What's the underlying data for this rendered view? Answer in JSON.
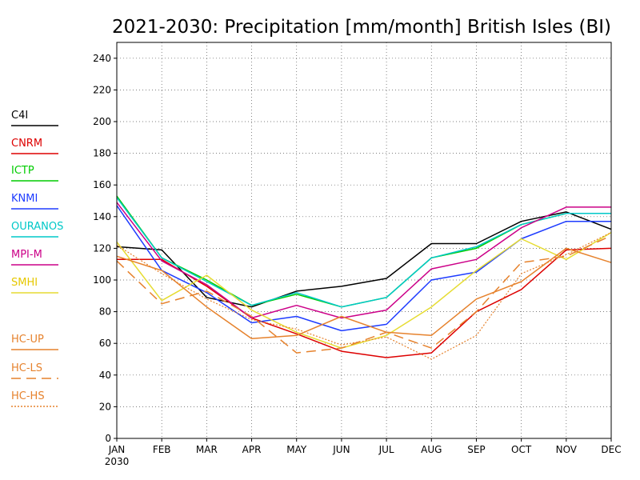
{
  "chart_data": {
    "type": "line",
    "title": "2021-2030: Precipitation [mm/month] British Isles (BI)",
    "xlabel": "",
    "ylabel": "",
    "categories": [
      "JAN",
      "FEB",
      "MAR",
      "APR",
      "MAY",
      "JUN",
      "JUL",
      "AUG",
      "SEP",
      "OCT",
      "NOV",
      "DEC"
    ],
    "x_sublabel": "2030",
    "ylim": [
      0,
      250
    ],
    "yticks": [
      0,
      20,
      40,
      60,
      80,
      100,
      120,
      140,
      160,
      180,
      200,
      220,
      240
    ],
    "grid": true,
    "legend_position": "left",
    "series": [
      {
        "name": "C4I",
        "color": "#000000",
        "dash": "solid",
        "values": [
          121,
          119,
          89,
          83,
          93,
          96,
          101,
          123,
          123,
          137,
          143,
          132
        ]
      },
      {
        "name": "CNRM",
        "color": "#dd0000",
        "dash": "solid",
        "values": [
          113,
          113,
          96,
          76,
          66,
          55,
          51,
          54,
          80,
          94,
          119,
          120
        ]
      },
      {
        "name": "ICTP",
        "color": "#00cc00",
        "dash": "solid",
        "values": [
          153,
          114,
          100,
          84,
          91,
          83,
          89,
          114,
          120,
          135,
          142,
          142
        ]
      },
      {
        "name": "KNMI",
        "color": "#1e3cff",
        "dash": "solid",
        "values": [
          147,
          106,
          92,
          73,
          77,
          68,
          72,
          100,
          105,
          126,
          137,
          137
        ]
      },
      {
        "name": "OURANOS",
        "color": "#00c8c8",
        "dash": "solid",
        "values": [
          152,
          114,
          99,
          84,
          92,
          83,
          89,
          114,
          121,
          135,
          142,
          142
        ]
      },
      {
        "name": "MPI-M",
        "color": "#cc0088",
        "dash": "solid",
        "values": [
          149,
          112,
          97,
          76,
          84,
          76,
          81,
          107,
          113,
          133,
          146,
          146
        ]
      },
      {
        "name": "SMHI",
        "color": "#e6dc32",
        "dash": "solid",
        "values": [
          124,
          87,
          103,
          81,
          67,
          57,
          65,
          83,
          106,
          126,
          113,
          130
        ]
      },
      {
        "name": "HC-UP",
        "color": "#e6822d",
        "dash": "solid",
        "values": [
          115,
          106,
          83,
          63,
          65,
          77,
          67,
          65,
          88,
          99,
          120,
          111
        ]
      },
      {
        "name": "HC-LS",
        "color": "#e6822d",
        "dash": "longdash",
        "values": [
          112,
          85,
          93,
          77,
          54,
          57,
          67,
          57,
          80,
          111,
          115,
          128
        ]
      },
      {
        "name": "HC-HS",
        "color": "#e6822d",
        "dash": "dotted",
        "values": [
          122,
          104,
          88,
          75,
          69,
          59,
          64,
          50,
          65,
          104,
          116,
          130
        ]
      }
    ]
  }
}
